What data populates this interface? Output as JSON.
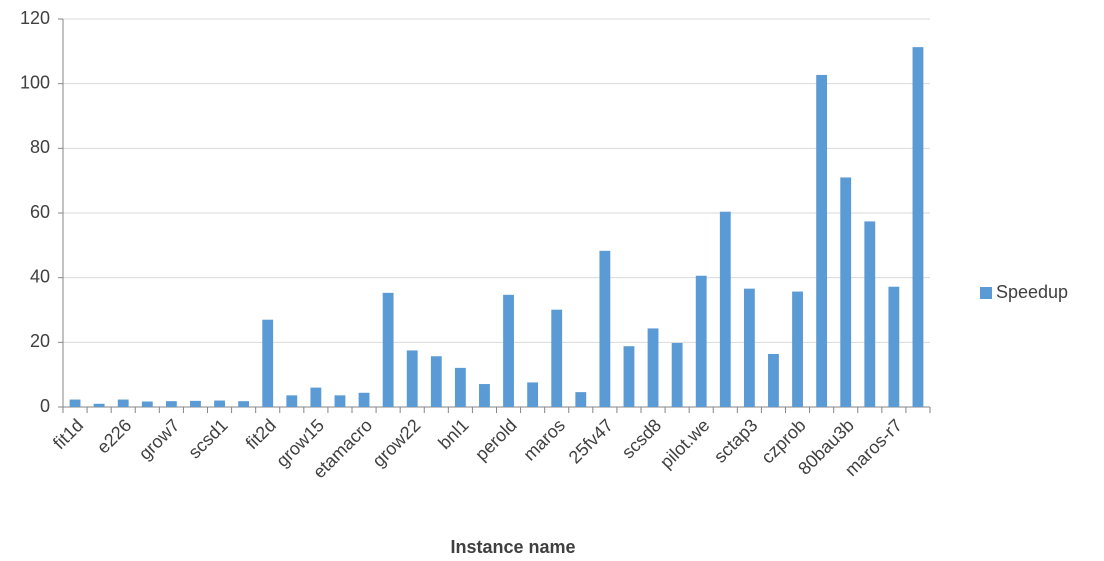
{
  "chart_data": {
    "type": "bar",
    "x_label": "Instance name",
    "categories": [
      "fit1d",
      null,
      "e226",
      null,
      "grow7",
      null,
      "scsd1",
      null,
      "fit2d",
      null,
      "grow15",
      null,
      "etamacro",
      null,
      "grow22",
      null,
      "bnl1",
      null,
      "perold",
      null,
      "maros",
      null,
      "25fv47",
      null,
      "scsd8",
      null,
      "pilot.we",
      null,
      "sctap3",
      null,
      "czprob",
      null,
      "80bau3b",
      null,
      "maros-r7",
      null
    ],
    "series": [
      {
        "name": "Speedup",
        "color": "#5b9bd5",
        "values": [
          2.3,
          1.0,
          2.3,
          1.7,
          1.8,
          1.9,
          2.0,
          1.8,
          27,
          3.6,
          6.0,
          3.6,
          4.4,
          35.3,
          17.5,
          15.7,
          12.1,
          7.1,
          34.7,
          7.6,
          30.1,
          4.6,
          48.3,
          18.8,
          24.3,
          19.8,
          40.6,
          60.4,
          36.6,
          16.4,
          35.7,
          102.7,
          71.0,
          57.4,
          37.2,
          111.3
        ]
      }
    ],
    "ylim": [
      0,
      120
    ],
    "yticks": [
      0,
      20,
      40,
      60,
      80,
      100,
      120
    ],
    "grid": true,
    "legend": "right"
  }
}
